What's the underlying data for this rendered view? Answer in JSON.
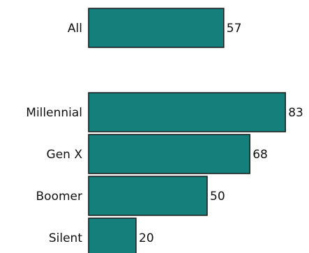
{
  "chart_data": {
    "type": "bar",
    "orientation": "horizontal",
    "categories": [
      "All",
      "Millennial",
      "Gen X",
      "Boomer",
      "Silent"
    ],
    "values": [
      57,
      83,
      68,
      50,
      20
    ],
    "title": "",
    "xlabel": "",
    "ylabel": "",
    "xlim": [
      0,
      83
    ],
    "grid": false,
    "legend": "none",
    "colors": {
      "bar_fill": "#157f7b",
      "bar_stroke": "#1a1a1a",
      "text": "#111111"
    }
  }
}
